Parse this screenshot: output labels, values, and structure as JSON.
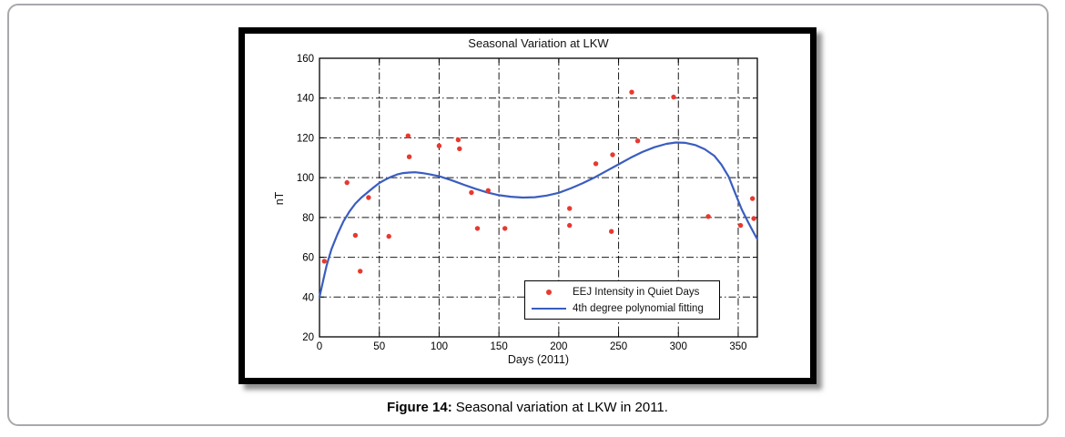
{
  "caption": {
    "label": "Figure 14:",
    "text": "Seasonal variation at LKW in 2011."
  },
  "chart_data": {
    "type": "scatter",
    "title": "Seasonal Variation at LKW",
    "xlabel": "Days (2011)",
    "ylabel": "nT",
    "xlim": [
      0,
      366
    ],
    "ylim": [
      20,
      160
    ],
    "xticks": [
      0,
      50,
      100,
      150,
      200,
      250,
      300,
      350
    ],
    "yticks": [
      20,
      40,
      60,
      80,
      100,
      120,
      140,
      160
    ],
    "grid": "dash-dot",
    "legend_position": "inside-lower-right",
    "series": [
      {
        "name": "EEJ Intensity in Quiet Days",
        "type": "scatter",
        "color": "#e8392f",
        "points": [
          [
            4,
            58
          ],
          [
            23,
            97.5
          ],
          [
            30,
            71
          ],
          [
            34,
            53
          ],
          [
            41,
            90
          ],
          [
            58,
            70.5
          ],
          [
            74,
            121
          ],
          [
            75,
            110.5
          ],
          [
            100,
            116
          ],
          [
            116,
            119
          ],
          [
            117,
            114.5
          ],
          [
            127,
            92.5
          ],
          [
            132,
            74.5
          ],
          [
            141,
            93.5
          ],
          [
            155,
            74.5
          ],
          [
            209,
            84.5
          ],
          [
            209,
            76
          ],
          [
            231,
            107
          ],
          [
            244,
            73
          ],
          [
            245,
            111.5
          ],
          [
            261,
            143
          ],
          [
            266,
            118.5
          ],
          [
            296,
            140.5
          ],
          [
            325,
            80.5
          ],
          [
            352,
            76
          ],
          [
            362,
            89.5
          ],
          [
            363,
            79.5
          ]
        ]
      },
      {
        "name": "4th degree polynomial fitting",
        "type": "line",
        "color": "#3a5dbf",
        "points": [
          [
            0,
            40
          ],
          [
            3,
            48
          ],
          [
            6,
            56
          ],
          [
            10,
            64
          ],
          [
            15,
            71.5
          ],
          [
            20,
            78
          ],
          [
            25,
            83
          ],
          [
            30,
            87
          ],
          [
            35,
            90
          ],
          [
            40,
            92.5
          ],
          [
            45,
            95
          ],
          [
            50,
            97.3
          ],
          [
            55,
            99
          ],
          [
            60,
            100.5
          ],
          [
            65,
            101.6
          ],
          [
            70,
            102.3
          ],
          [
            75,
            102.6
          ],
          [
            80,
            102.7
          ],
          [
            86,
            102.3
          ],
          [
            92,
            101.7
          ],
          [
            100,
            100.7
          ],
          [
            110,
            98.8
          ],
          [
            120,
            96.6
          ],
          [
            130,
            94.5
          ],
          [
            140,
            92.6
          ],
          [
            150,
            91.2
          ],
          [
            160,
            90.4
          ],
          [
            170,
            90
          ],
          [
            180,
            90.2
          ],
          [
            190,
            91
          ],
          [
            200,
            92.4
          ],
          [
            210,
            94.6
          ],
          [
            220,
            97.2
          ],
          [
            230,
            100.1
          ],
          [
            240,
            103.4
          ],
          [
            250,
            106.7
          ],
          [
            260,
            110
          ],
          [
            270,
            112.9
          ],
          [
            280,
            115.3
          ],
          [
            290,
            117
          ],
          [
            298,
            117.7
          ],
          [
            306,
            117.5
          ],
          [
            314,
            116.4
          ],
          [
            322,
            114.3
          ],
          [
            330,
            111
          ],
          [
            336,
            106.5
          ],
          [
            342,
            100.5
          ],
          [
            348,
            91.5
          ],
          [
            353,
            84
          ],
          [
            358,
            78
          ],
          [
            362,
            73.5
          ],
          [
            366,
            69
          ]
        ]
      }
    ]
  }
}
